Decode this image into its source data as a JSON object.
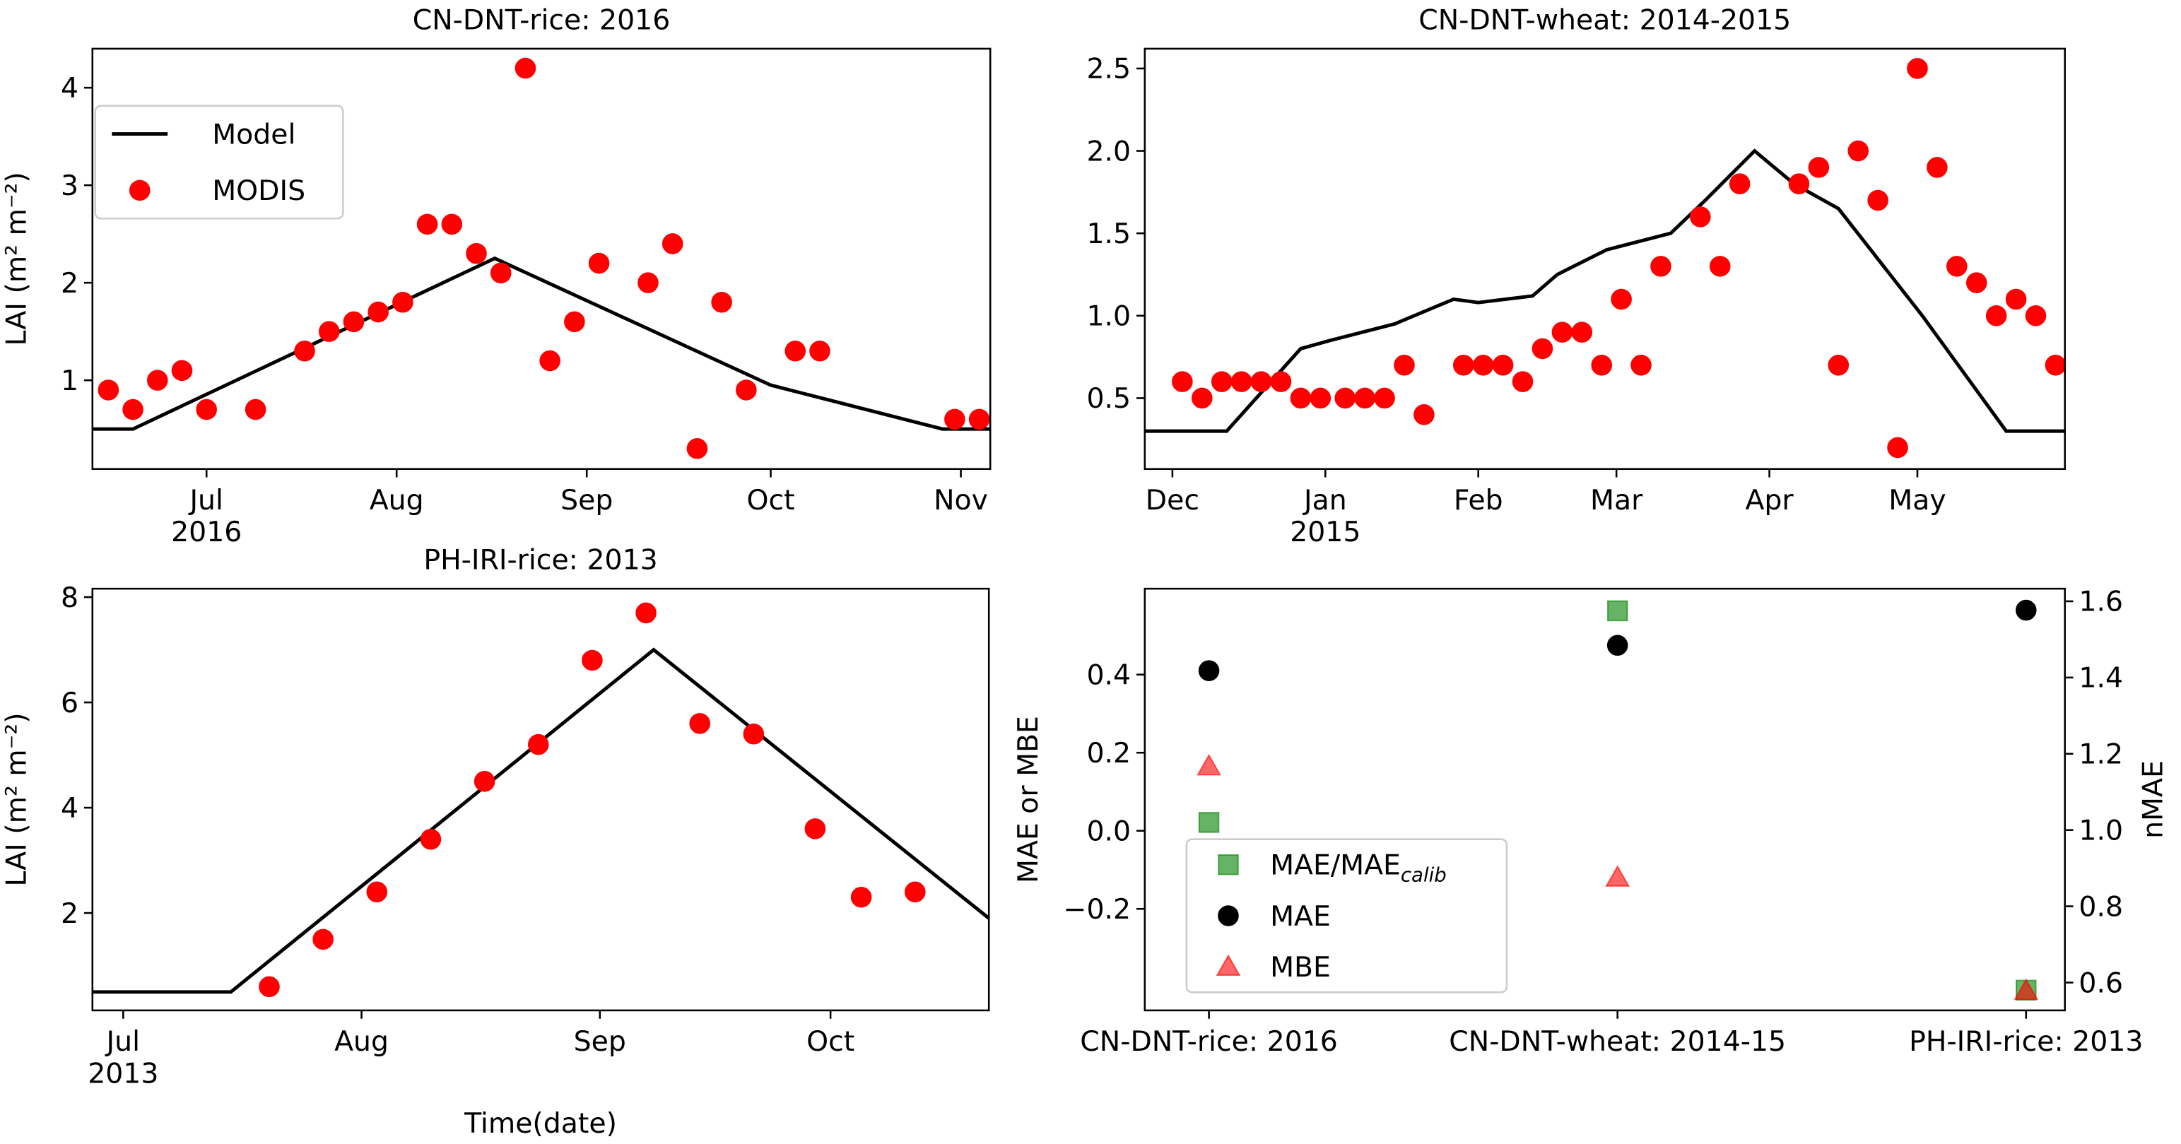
{
  "chart_data": [
    {
      "type": "line",
      "title": "CN-DNT-rice: 2016",
      "ylabel": "LAI (m² m⁻²)",
      "xlim": [
        164.4,
        310.8
      ],
      "ylim": [
        0.09,
        4.4
      ],
      "yticks": [
        1,
        2,
        3,
        4
      ],
      "xticks": [
        {
          "value": 183,
          "label": "Jul\n2016"
        },
        {
          "value": 214,
          "label": "Aug"
        },
        {
          "value": 245,
          "label": "Sep"
        },
        {
          "value": 275,
          "label": "Oct"
        },
        {
          "value": 306,
          "label": "Nov"
        }
      ],
      "legend": "upper left",
      "series": [
        {
          "name": "Model",
          "type": "line",
          "color": "#000000",
          "x": [
            164.4,
            171,
            230,
            275,
            303,
            310.8
          ],
          "values": [
            0.5,
            0.5,
            2.25,
            0.95,
            0.5,
            0.5
          ]
        },
        {
          "name": "MODIS",
          "type": "scatter",
          "marker": "o",
          "color": "#ff0000",
          "x": [
            167,
            171,
            175,
            179,
            183,
            191,
            199,
            203,
            207,
            211,
            215,
            219,
            223,
            227,
            231,
            235,
            239,
            243,
            247,
            255,
            259,
            263,
            267,
            271,
            279,
            283,
            305,
            309
          ],
          "values": [
            0.9,
            0.7,
            1.0,
            1.1,
            0.7,
            0.7,
            1.3,
            1.5,
            1.6,
            1.7,
            1.8,
            2.6,
            2.6,
            2.3,
            2.1,
            4.2,
            1.2,
            1.6,
            2.2,
            2.0,
            2.4,
            0.3,
            1.8,
            0.9,
            1.3,
            1.3,
            0.6,
            0.6
          ]
        }
      ]
    },
    {
      "type": "line",
      "title": "CN-DNT-wheat: 2014-2015",
      "xlim": [
        -36.6,
        149.9
      ],
      "ylim": [
        0.07,
        2.62
      ],
      "yticks": [
        0.5,
        {
          "value": 1,
          "label": "1.0"
        },
        1.5,
        {
          "value": 2,
          "label": "2.0"
        },
        2.5
      ],
      "xticks": [
        {
          "value": -31,
          "label": "Dec"
        },
        {
          "value": 0,
          "label": "Jan\n2015"
        },
        {
          "value": 31,
          "label": "Feb"
        },
        {
          "value": 59,
          "label": "Mar"
        },
        {
          "value": 90,
          "label": "Apr"
        },
        {
          "value": 120,
          "label": "May"
        }
      ],
      "series": [
        {
          "name": "Model",
          "type": "line",
          "color": "#000000",
          "x": [
            -36.6,
            -20,
            -5,
            1,
            14,
            22,
            26,
            31,
            42,
            47,
            57,
            70,
            77,
            87,
            95,
            104,
            121,
            138,
            149.9
          ],
          "values": [
            0.3,
            0.3,
            0.8,
            0.85,
            0.95,
            1.05,
            1.1,
            1.08,
            1.12,
            1.25,
            1.4,
            1.5,
            1.7,
            2.0,
            1.8,
            1.65,
            1.0,
            0.3,
            0.3
          ]
        },
        {
          "name": "MODIS",
          "type": "scatter",
          "marker": "o",
          "color": "#ff0000",
          "x": [
            -29,
            -25,
            -21,
            -17,
            -13,
            -9,
            -5,
            -1,
            4,
            8,
            12,
            16,
            20,
            28,
            32,
            36,
            40,
            44,
            48,
            52,
            56,
            60,
            64,
            68,
            76,
            80,
            84,
            96,
            100,
            104,
            108,
            112,
            116,
            120,
            124,
            128,
            132,
            136,
            140,
            144,
            148
          ],
          "values": [
            0.6,
            0.5,
            0.6,
            0.6,
            0.6,
            0.6,
            0.5,
            0.5,
            0.5,
            0.5,
            0.5,
            0.7,
            0.4,
            0.7,
            0.7,
            0.7,
            0.6,
            0.8,
            0.9,
            0.9,
            0.7,
            1.1,
            0.7,
            1.3,
            1.6,
            1.3,
            1.8,
            1.8,
            1.9,
            0.7,
            2.0,
            1.7,
            0.2,
            2.5,
            1.9,
            1.3,
            1.2,
            1.0,
            1.1,
            1.0,
            0.7
          ]
        }
      ]
    },
    {
      "type": "line",
      "title": "PH-IRI-rice: 2013",
      "ylabel": "LAI (m² m⁻²)",
      "xlabel": "Time(date)",
      "xlim": [
        178,
        294.6
      ],
      "ylim": [
        0.15,
        8.16
      ],
      "yticks": [
        2,
        4,
        6,
        8
      ],
      "xticks": [
        {
          "value": 182,
          "label": "Jul\n2013"
        },
        {
          "value": 213,
          "label": "Aug"
        },
        {
          "value": 244,
          "label": "Sep"
        },
        {
          "value": 274,
          "label": "Oct"
        }
      ],
      "series": [
        {
          "name": "Model",
          "type": "line",
          "color": "#000000",
          "x": [
            178,
            196,
            251,
            294.6
          ],
          "values": [
            0.5,
            0.5,
            7.0,
            1.9
          ]
        },
        {
          "name": "MODIS",
          "type": "scatter",
          "marker": "o",
          "color": "#ff0000",
          "x": [
            201,
            208,
            215,
            222,
            229,
            236,
            243,
            250,
            257,
            264,
            272,
            278,
            285
          ],
          "values": [
            0.6,
            1.5,
            2.4,
            3.4,
            4.5,
            5.2,
            6.8,
            7.7,
            5.6,
            5.4,
            3.6,
            2.3,
            2.4
          ]
        }
      ]
    },
    {
      "type": "scatter",
      "ylabel": "MAE or MBE",
      "y2label": "nMAE",
      "categories": [
        "CN-DNT-rice: 2016",
        "CN-DNT-wheat: 2014-15",
        "PH-IRI-rice: 2013"
      ],
      "ylim": [
        -0.46,
        0.62
      ],
      "yticks": [
        {
          "value": -0.2,
          "label": "−0.2"
        },
        {
          "value": 0,
          "label": "0.0"
        },
        0.2,
        0.4
      ],
      "y2lim": [
        0.527,
        1.633
      ],
      "y2ticks": [
        0.6,
        0.8,
        {
          "value": 1,
          "label": "1.0"
        },
        1.2,
        1.4,
        1.6
      ],
      "legend": "lower left",
      "series": [
        {
          "name": "MAE/MAE",
          "name_subscript": "calib",
          "type": "scatter",
          "marker": "s",
          "color": "#008000",
          "alpha": 0.6,
          "axis": "y2",
          "values": [
            1.02,
            1.575,
            0.58
          ]
        },
        {
          "name": "MAE",
          "type": "scatter",
          "marker": "o",
          "color": "#000000",
          "values": [
            0.41,
            0.475,
            0.565
          ]
        },
        {
          "name": "MBE",
          "type": "scatter",
          "marker": "^",
          "color": "#ff0000",
          "alpha": 0.6,
          "values": [
            0.165,
            -0.12,
            -0.41
          ]
        }
      ]
    }
  ]
}
